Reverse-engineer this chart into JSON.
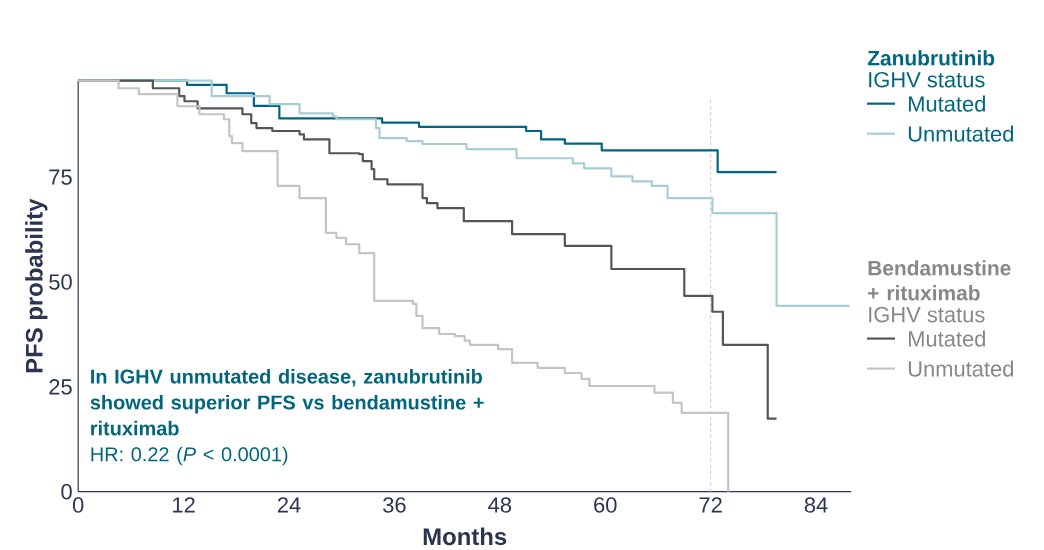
{
  "chart_data": {
    "type": "step",
    "xlabel": "Months",
    "ylabel": "PFS probability",
    "xlim": [
      0,
      88
    ],
    "ylim": [
      0,
      98
    ],
    "xticks": [
      0,
      12,
      24,
      36,
      48,
      60,
      72,
      84
    ],
    "yticks": [
      0,
      25,
      50,
      75
    ],
    "legend": "right",
    "grid": false,
    "ref_lines": [
      {
        "axis": "x",
        "value": 72,
        "color": "#c8c8c8",
        "line_style": "dashed"
      }
    ],
    "annotations": [
      "**In IGHV unmutated disease, zanubrutinib showed superior PFS vs bendamustine + rituximab**",
      "HR: 0.22 (*P* < 0.0001)",
      "Zanubrutinib",
      "IGHV status",
      "Bendamustine + rituximab",
      "IGHV status"
    ],
    "series": [
      {
        "name": "Mutated",
        "color": "#00667f",
        "x": [
          0,
          12.4,
          16.9,
          20,
          22.9,
          34.6,
          38.8,
          51,
          52.7,
          55.4,
          59.6,
          72.8,
          79.5
        ],
        "values": [
          98,
          97,
          95,
          92,
          89,
          88,
          87,
          86,
          84,
          83,
          81.4,
          76.2,
          76.2
        ]
      },
      {
        "name": "Unmutated",
        "color": "#a7cdd6",
        "x": [
          0,
          15.2,
          21.8,
          25.2,
          29,
          29.4,
          33.9,
          34.3,
          37.4,
          39.2,
          44.2,
          49.9,
          56.3,
          57.6,
          60.7,
          63.1,
          65.3,
          67.1,
          72.2,
          79.5,
          87.8
        ],
        "values": [
          98,
          94.3,
          92.4,
          90.2,
          89.5,
          88.8,
          86.7,
          84.3,
          83.6,
          82.9,
          81.7,
          79.5,
          78.3,
          77.1,
          75.2,
          74,
          72.9,
          70,
          66.4,
          44.3,
          44.3
        ]
      },
      {
        "name": "Mutated",
        "color": "#555555",
        "x": [
          0,
          8.5,
          11.5,
          12.1,
          13.6,
          18.7,
          19.7,
          20.3,
          22.1,
          25.2,
          25.7,
          28.6,
          32,
          32.4,
          33.4,
          33.7,
          35.2,
          39.2,
          39.7,
          40.9,
          43.9,
          49.4,
          55.4,
          60.7,
          69,
          72.2,
          73.4,
          78.5,
          79.5
        ],
        "values": [
          98,
          96.2,
          94.3,
          93.1,
          91.4,
          90,
          87.9,
          86.7,
          86,
          85.2,
          84,
          80.7,
          80.5,
          78.8,
          76.9,
          74.5,
          73.3,
          70,
          68.8,
          67.6,
          64.5,
          61.4,
          58.6,
          53.1,
          46.7,
          42.9,
          35,
          17.4,
          17.4
        ]
      },
      {
        "name": "Unmutated",
        "color": "#c4c4c0",
        "x": [
          0,
          4.6,
          6.9,
          11.3,
          13.8,
          16.6,
          17.2,
          17.5,
          18.7,
          22.7,
          25.2,
          28.2,
          29.4,
          30.5,
          32,
          33.7,
          38.1,
          38.5,
          39.2,
          41.1,
          42.9,
          44,
          44.6,
          47.8,
          49.4,
          52.3,
          55.4,
          57.3,
          58.2,
          65.6,
          67.7,
          68.7,
          74
        ],
        "values": [
          98,
          96.2,
          94.8,
          91.9,
          90,
          88.8,
          84.8,
          83.1,
          81.2,
          72.9,
          70,
          61.7,
          60.5,
          59,
          56.9,
          45.5,
          44.8,
          41.9,
          39,
          37.6,
          37.1,
          36,
          35,
          34,
          30.7,
          29.5,
          28.3,
          26.9,
          25.2,
          23.6,
          21.2,
          18.8,
          0
        ]
      }
    ]
  }
}
